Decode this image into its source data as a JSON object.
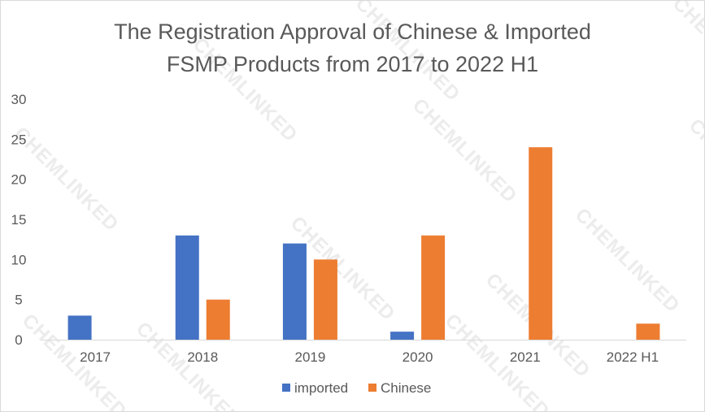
{
  "chart_data": {
    "type": "bar",
    "title_lines": [
      "The Registration Approval of Chinese & Imported",
      "FSMP Products from 2017 to 2022 H1"
    ],
    "categories": [
      "2017",
      "2018",
      "2019",
      "2020",
      "2021",
      "2022 H1"
    ],
    "series": [
      {
        "name": "imported",
        "color": "#4472c4",
        "values": [
          3,
          13,
          12,
          1,
          0,
          0
        ]
      },
      {
        "name": "Chinese",
        "color": "#ed7d31",
        "values": [
          0,
          5,
          10,
          13,
          24,
          2
        ]
      }
    ],
    "ylim": [
      0,
      30
    ],
    "yticks": [
      0,
      5,
      10,
      15,
      20,
      25,
      30
    ],
    "grid": false,
    "legend_position": "bottom",
    "watermark": "CHEMLINKED"
  }
}
